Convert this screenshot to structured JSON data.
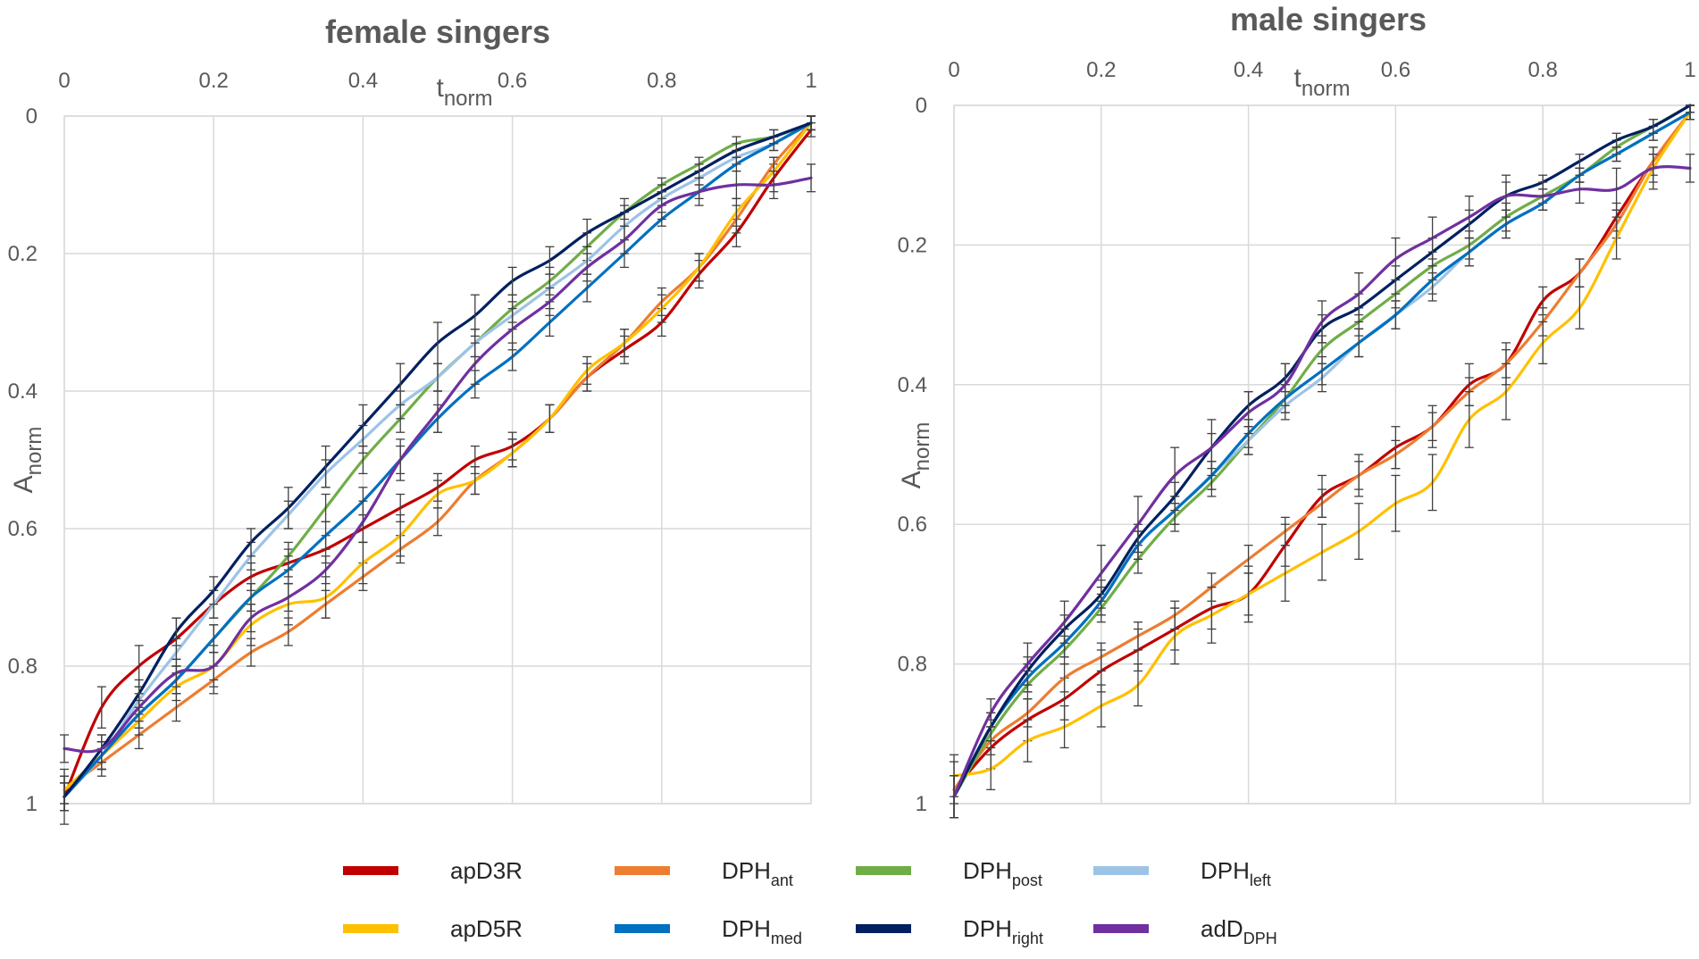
{
  "chart_data": [
    {
      "type": "line",
      "title": "female singers",
      "xlabel": "t",
      "xlabel_sub": "norm",
      "ylabel": "A",
      "ylabel_sub": "norm",
      "xlim": [
        0,
        1
      ],
      "ylim": [
        0,
        1
      ],
      "y_inverted": true,
      "x_axis_position": "top",
      "x_ticks": [
        0,
        0.2,
        0.4,
        0.6,
        0.8,
        1
      ],
      "x_tick_labels": [
        "0",
        "0.2",
        "0.4",
        "0.6",
        "0.8",
        "1"
      ],
      "y_ticks": [
        0,
        0.2,
        0.4,
        0.6,
        0.8,
        1
      ],
      "y_tick_labels": [
        "0",
        "0.2",
        "0.4",
        "0.6",
        "0.8",
        "1"
      ],
      "grid": true,
      "error_bars": true,
      "x": [
        0,
        0.05,
        0.1,
        0.15,
        0.2,
        0.25,
        0.3,
        0.35,
        0.4,
        0.45,
        0.5,
        0.55,
        0.6,
        0.65,
        0.7,
        0.75,
        0.8,
        0.85,
        0.9,
        0.95,
        1
      ],
      "series": [
        {
          "name": "apD3R",
          "color": "#C00000",
          "values": [
            0.99,
            0.86,
            0.8,
            0.76,
            0.71,
            0.67,
            0.65,
            0.63,
            0.6,
            0.57,
            0.54,
            0.5,
            0.48,
            0.44,
            0.38,
            0.34,
            0.3,
            0.23,
            0.17,
            0.09,
            0.02
          ],
          "errors": [
            0.04,
            0.03,
            0.03,
            0.03,
            0.02,
            0.02,
            0.02,
            0.02,
            0.02,
            0.02,
            0.02,
            0.02,
            0.02,
            0.02,
            0.02,
            0.02,
            0.02,
            0.02,
            0.02,
            0.02,
            0.01
          ]
        },
        {
          "name": "DPH_ant",
          "color": "#ED7D31",
          "values": [
            0.98,
            0.94,
            0.9,
            0.86,
            0.82,
            0.78,
            0.75,
            0.71,
            0.67,
            0.63,
            0.59,
            0.53,
            0.49,
            0.44,
            0.38,
            0.33,
            0.27,
            0.22,
            0.15,
            0.07,
            0.01
          ],
          "errors": [
            0.02,
            0.02,
            0.02,
            0.02,
            0.02,
            0.02,
            0.02,
            0.02,
            0.02,
            0.02,
            0.02,
            0.02,
            0.02,
            0.02,
            0.02,
            0.02,
            0.02,
            0.02,
            0.02,
            0.01,
            0.01
          ]
        },
        {
          "name": "DPH_post",
          "color": "#70AD47",
          "values": [
            0.99,
            0.93,
            0.87,
            0.82,
            0.76,
            0.7,
            0.64,
            0.57,
            0.5,
            0.44,
            0.38,
            0.33,
            0.28,
            0.24,
            0.19,
            0.14,
            0.1,
            0.07,
            0.04,
            0.03,
            0.01
          ],
          "errors": [
            0.02,
            0.02,
            0.02,
            0.02,
            0.02,
            0.02,
            0.02,
            0.02,
            0.02,
            0.02,
            0.02,
            0.02,
            0.02,
            0.02,
            0.02,
            0.01,
            0.01,
            0.01,
            0.01,
            0.01,
            0.01
          ]
        },
        {
          "name": "DPH_left",
          "color": "#9DC3E6",
          "values": [
            0.99,
            0.93,
            0.85,
            0.78,
            0.71,
            0.64,
            0.58,
            0.52,
            0.47,
            0.42,
            0.38,
            0.33,
            0.29,
            0.25,
            0.21,
            0.16,
            0.12,
            0.09,
            0.06,
            0.04,
            0.01
          ],
          "errors": [
            0.02,
            0.02,
            0.02,
            0.02,
            0.02,
            0.02,
            0.02,
            0.02,
            0.02,
            0.02,
            0.02,
            0.02,
            0.02,
            0.02,
            0.02,
            0.02,
            0.01,
            0.01,
            0.01,
            0.01,
            0.01
          ]
        },
        {
          "name": "apD5R",
          "color": "#FFC000",
          "values": [
            0.98,
            0.93,
            0.88,
            0.83,
            0.8,
            0.74,
            0.71,
            0.7,
            0.65,
            0.61,
            0.55,
            0.53,
            0.49,
            0.44,
            0.37,
            0.33,
            0.28,
            0.22,
            0.14,
            0.08,
            0.01
          ],
          "errors": [
            0.02,
            0.02,
            0.02,
            0.02,
            0.03,
            0.03,
            0.03,
            0.03,
            0.03,
            0.03,
            0.02,
            0.02,
            0.02,
            0.02,
            0.02,
            0.02,
            0.02,
            0.02,
            0.02,
            0.02,
            0.01
          ]
        },
        {
          "name": "DPH_med",
          "color": "#0070C0",
          "values": [
            0.99,
            0.93,
            0.87,
            0.82,
            0.76,
            0.7,
            0.66,
            0.61,
            0.56,
            0.5,
            0.44,
            0.39,
            0.35,
            0.3,
            0.25,
            0.2,
            0.15,
            0.11,
            0.07,
            0.04,
            0.01
          ],
          "errors": [
            0.02,
            0.02,
            0.02,
            0.02,
            0.02,
            0.02,
            0.02,
            0.02,
            0.02,
            0.02,
            0.02,
            0.02,
            0.02,
            0.02,
            0.02,
            0.02,
            0.01,
            0.01,
            0.01,
            0.01,
            0.01
          ]
        },
        {
          "name": "DPH_right",
          "color": "#002060",
          "values": [
            0.99,
            0.92,
            0.84,
            0.75,
            0.69,
            0.62,
            0.57,
            0.51,
            0.45,
            0.39,
            0.33,
            0.29,
            0.24,
            0.21,
            0.17,
            0.14,
            0.11,
            0.08,
            0.05,
            0.03,
            0.01
          ],
          "errors": [
            0.02,
            0.02,
            0.02,
            0.02,
            0.02,
            0.02,
            0.03,
            0.03,
            0.03,
            0.03,
            0.03,
            0.03,
            0.02,
            0.02,
            0.02,
            0.02,
            0.01,
            0.01,
            0.01,
            0.01,
            0.01
          ]
        },
        {
          "name": "adD_DPH",
          "color": "#7030A0",
          "values": [
            0.92,
            0.92,
            0.86,
            0.81,
            0.8,
            0.73,
            0.7,
            0.66,
            0.59,
            0.5,
            0.43,
            0.36,
            0.31,
            0.27,
            0.22,
            0.18,
            0.13,
            0.11,
            0.1,
            0.1,
            0.09
          ],
          "errors": [
            0.02,
            0.02,
            0.02,
            0.02,
            0.02,
            0.02,
            0.02,
            0.02,
            0.03,
            0.03,
            0.03,
            0.03,
            0.03,
            0.02,
            0.02,
            0.02,
            0.02,
            0.02,
            0.02,
            0.02,
            0.02
          ]
        }
      ]
    },
    {
      "type": "line",
      "title": "male singers",
      "xlabel": "t",
      "xlabel_sub": "norm",
      "ylabel": "A",
      "ylabel_sub": "norm",
      "xlim": [
        0,
        1
      ],
      "ylim": [
        0,
        1
      ],
      "y_inverted": true,
      "x_axis_position": "top",
      "x_ticks": [
        0,
        0.2,
        0.4,
        0.6,
        0.8,
        1
      ],
      "x_tick_labels": [
        "0",
        "0.2",
        "0.4",
        "0.6",
        "0.8",
        "1"
      ],
      "y_ticks": [
        0,
        0.2,
        0.4,
        0.6,
        0.8,
        1
      ],
      "y_tick_labels": [
        "0",
        "0.2",
        "0.4",
        "0.6",
        "0.8",
        "1"
      ],
      "grid": true,
      "error_bars": true,
      "x": [
        0,
        0.05,
        0.1,
        0.15,
        0.2,
        0.25,
        0.3,
        0.35,
        0.4,
        0.45,
        0.5,
        0.55,
        0.6,
        0.65,
        0.7,
        0.75,
        0.8,
        0.85,
        0.9,
        0.95,
        1
      ],
      "series": [
        {
          "name": "apD3R",
          "color": "#C00000",
          "values": [
            0.98,
            0.92,
            0.88,
            0.85,
            0.81,
            0.78,
            0.75,
            0.72,
            0.7,
            0.63,
            0.56,
            0.53,
            0.49,
            0.46,
            0.4,
            0.37,
            0.28,
            0.24,
            0.16,
            0.08,
            0.01
          ],
          "errors": [
            0.04,
            0.03,
            0.03,
            0.03,
            0.03,
            0.03,
            0.03,
            0.03,
            0.03,
            0.03,
            0.03,
            0.03,
            0.03,
            0.03,
            0.03,
            0.03,
            0.02,
            0.02,
            0.02,
            0.02,
            0.01
          ]
        },
        {
          "name": "DPH_ant",
          "color": "#ED7D31",
          "values": [
            0.98,
            0.91,
            0.87,
            0.82,
            0.79,
            0.76,
            0.73,
            0.69,
            0.65,
            0.61,
            0.57,
            0.53,
            0.5,
            0.46,
            0.41,
            0.37,
            0.31,
            0.24,
            0.17,
            0.08,
            0.01
          ],
          "errors": [
            0.02,
            0.02,
            0.02,
            0.02,
            0.02,
            0.02,
            0.02,
            0.02,
            0.02,
            0.02,
            0.02,
            0.02,
            0.02,
            0.02,
            0.02,
            0.02,
            0.02,
            0.02,
            0.02,
            0.01,
            0.01
          ]
        },
        {
          "name": "DPH_post",
          "color": "#70AD47",
          "values": [
            0.99,
            0.9,
            0.83,
            0.78,
            0.72,
            0.65,
            0.59,
            0.54,
            0.48,
            0.42,
            0.35,
            0.31,
            0.27,
            0.23,
            0.2,
            0.16,
            0.13,
            0.1,
            0.06,
            0.03,
            0.0
          ],
          "errors": [
            0.03,
            0.02,
            0.02,
            0.02,
            0.02,
            0.02,
            0.02,
            0.02,
            0.02,
            0.02,
            0.02,
            0.02,
            0.02,
            0.02,
            0.02,
            0.02,
            0.01,
            0.01,
            0.01,
            0.01,
            0.01
          ]
        },
        {
          "name": "DPH_left",
          "color": "#9DC3E6",
          "values": [
            0.99,
            0.89,
            0.82,
            0.77,
            0.71,
            0.63,
            0.58,
            0.53,
            0.48,
            0.43,
            0.39,
            0.34,
            0.3,
            0.26,
            0.21,
            0.17,
            0.14,
            0.1,
            0.07,
            0.04,
            0.01
          ],
          "errors": [
            0.03,
            0.02,
            0.02,
            0.02,
            0.02,
            0.02,
            0.02,
            0.02,
            0.02,
            0.02,
            0.02,
            0.02,
            0.02,
            0.02,
            0.02,
            0.02,
            0.01,
            0.01,
            0.01,
            0.01,
            0.01
          ]
        },
        {
          "name": "apD5R",
          "color": "#FFC000",
          "values": [
            0.96,
            0.95,
            0.91,
            0.89,
            0.86,
            0.83,
            0.76,
            0.73,
            0.7,
            0.67,
            0.64,
            0.61,
            0.57,
            0.54,
            0.45,
            0.41,
            0.34,
            0.29,
            0.19,
            0.09,
            0.01
          ],
          "errors": [
            0.03,
            0.03,
            0.03,
            0.03,
            0.03,
            0.03,
            0.04,
            0.04,
            0.04,
            0.04,
            0.04,
            0.04,
            0.04,
            0.04,
            0.04,
            0.04,
            0.03,
            0.03,
            0.03,
            0.02,
            0.01
          ]
        },
        {
          "name": "DPH_med",
          "color": "#0070C0",
          "values": [
            0.99,
            0.89,
            0.82,
            0.77,
            0.71,
            0.63,
            0.58,
            0.53,
            0.47,
            0.42,
            0.38,
            0.34,
            0.3,
            0.25,
            0.21,
            0.17,
            0.14,
            0.1,
            0.07,
            0.04,
            0.01
          ],
          "errors": [
            0.03,
            0.02,
            0.02,
            0.02,
            0.02,
            0.02,
            0.02,
            0.02,
            0.02,
            0.02,
            0.02,
            0.02,
            0.02,
            0.02,
            0.02,
            0.02,
            0.01,
            0.01,
            0.01,
            0.01,
            0.01
          ]
        },
        {
          "name": "DPH_right",
          "color": "#002060",
          "values": [
            0.99,
            0.89,
            0.81,
            0.75,
            0.7,
            0.62,
            0.56,
            0.49,
            0.43,
            0.39,
            0.32,
            0.29,
            0.25,
            0.21,
            0.17,
            0.13,
            0.11,
            0.08,
            0.05,
            0.03,
            0.0
          ],
          "errors": [
            0.03,
            0.02,
            0.02,
            0.02,
            0.02,
            0.02,
            0.02,
            0.02,
            0.02,
            0.02,
            0.02,
            0.02,
            0.02,
            0.02,
            0.02,
            0.02,
            0.01,
            0.01,
            0.01,
            0.01,
            0.01
          ]
        },
        {
          "name": "adD_DPH",
          "color": "#7030A0",
          "values": [
            0.99,
            0.87,
            0.8,
            0.74,
            0.67,
            0.6,
            0.53,
            0.49,
            0.44,
            0.4,
            0.31,
            0.27,
            0.22,
            0.19,
            0.16,
            0.13,
            0.13,
            0.12,
            0.12,
            0.09,
            0.09
          ],
          "errors": [
            0.03,
            0.02,
            0.03,
            0.03,
            0.04,
            0.04,
            0.04,
            0.04,
            0.03,
            0.03,
            0.03,
            0.03,
            0.03,
            0.03,
            0.03,
            0.03,
            0.02,
            0.02,
            0.03,
            0.03,
            0.02
          ]
        }
      ]
    }
  ],
  "legend": {
    "placement": "bottom",
    "items": [
      {
        "key": "apD3R",
        "base": "apD3R",
        "sub": "",
        "color": "#C00000"
      },
      {
        "key": "DPH_ant",
        "base": "DPH",
        "sub": "ant",
        "color": "#ED7D31"
      },
      {
        "key": "DPH_post",
        "base": "DPH",
        "sub": "post",
        "color": "#70AD47"
      },
      {
        "key": "DPH_left",
        "base": "DPH",
        "sub": "left",
        "color": "#9DC3E6"
      },
      {
        "key": "apD5R",
        "base": "apD5R",
        "sub": "",
        "color": "#FFC000"
      },
      {
        "key": "DPH_med",
        "base": "DPH",
        "sub": "med",
        "color": "#0070C0"
      },
      {
        "key": "DPH_right",
        "base": "DPH",
        "sub": "right",
        "color": "#002060"
      },
      {
        "key": "adD_DPH",
        "base": "adD",
        "sub": "DPH",
        "color": "#7030A0"
      }
    ]
  }
}
